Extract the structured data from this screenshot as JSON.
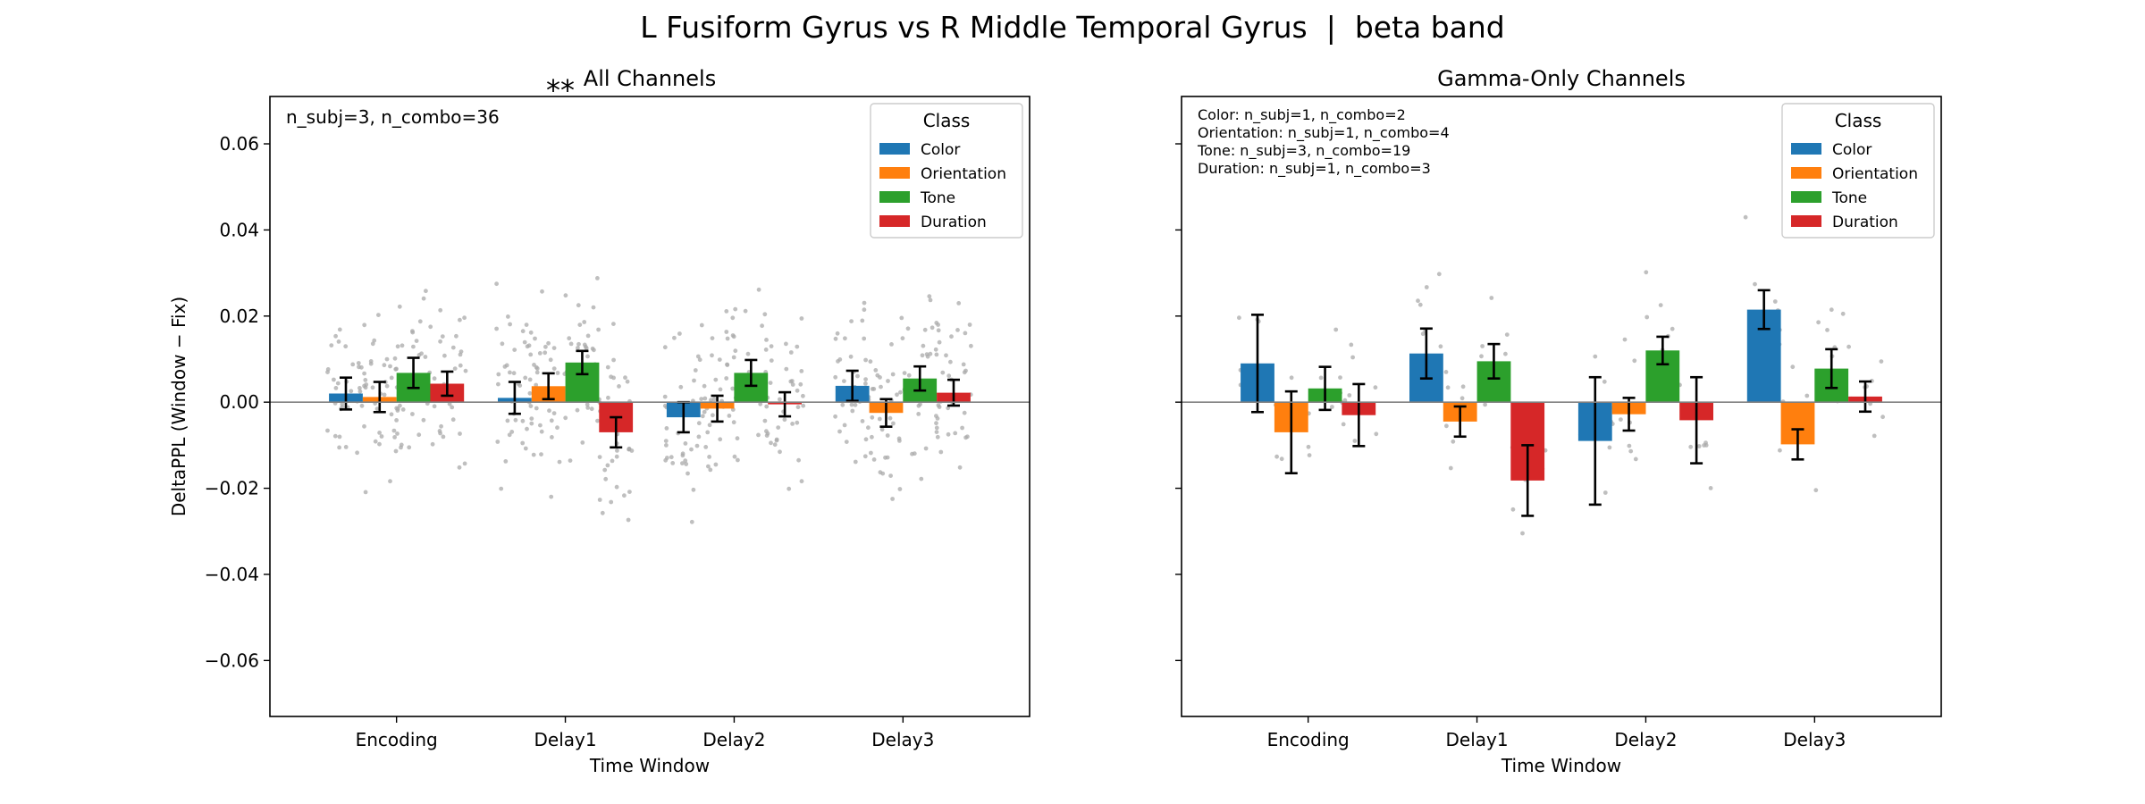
{
  "figure": {
    "suptitle": "L Fusiform Gyrus vs R Middle Temporal Gyrus  |  beta band"
  },
  "colors": {
    "Color": "#1f77b4",
    "Orientation": "#ff7f0e",
    "Tone": "#2ca02c",
    "Duration": "#d62728",
    "significance": "#ff0000",
    "scatter": "#aaaaaa"
  },
  "chart_data": [
    {
      "type": "bar",
      "title": "All Channels",
      "significance": "**",
      "xlabel": "Time Window",
      "ylabel": "DeltaPPL (Window − Fix)",
      "categories": [
        "Encoding",
        "Delay1",
        "Delay2",
        "Delay3"
      ],
      "ylim": [
        -0.073,
        0.071
      ],
      "yticks": [
        -0.06,
        -0.04,
        -0.02,
        0.0,
        0.02,
        0.04,
        0.06
      ],
      "ytick_labels": [
        "−0.06",
        "−0.04",
        "−0.02",
        "0.00",
        "0.02",
        "0.04",
        "0.06"
      ],
      "show_ytick_labels": true,
      "annotation": [
        "n_subj=3, n_combo=36"
      ],
      "legend": {
        "title": "Class",
        "placement": "top-right"
      },
      "series": [
        {
          "name": "Color",
          "values": [
            0.002,
            0.001,
            -0.0035,
            0.0038
          ],
          "err": [
            0.0037,
            0.0037,
            0.0035,
            0.0035
          ]
        },
        {
          "name": "Orientation",
          "values": [
            0.0012,
            0.0037,
            -0.0015,
            -0.0025
          ],
          "err": [
            0.0035,
            0.003,
            0.003,
            0.0032
          ]
        },
        {
          "name": "Tone",
          "values": [
            0.0068,
            0.0092,
            0.0068,
            0.0055
          ],
          "err": [
            0.0035,
            0.0027,
            0.003,
            0.0028
          ]
        },
        {
          "name": "Duration",
          "values": [
            0.0043,
            -0.007,
            -0.0005,
            0.0022
          ],
          "err": [
            0.0028,
            0.0035,
            0.0028,
            0.003
          ]
        }
      ],
      "scatter": {
        "points_per_bar": 36,
        "spread": 0.018
      }
    },
    {
      "type": "bar",
      "title": "Gamma-Only Channels",
      "xlabel": "Time Window",
      "ylabel": "",
      "categories": [
        "Encoding",
        "Delay1",
        "Delay2",
        "Delay3"
      ],
      "ylim": [
        -0.073,
        0.071
      ],
      "yticks": [
        -0.06,
        -0.04,
        -0.02,
        0.0,
        0.02,
        0.04,
        0.06
      ],
      "ytick_labels": [],
      "show_ytick_labels": false,
      "annotation": [
        "Color: n_subj=1, n_combo=2",
        "Orientation: n_subj=1, n_combo=4",
        "Tone: n_subj=3, n_combo=19",
        "Duration: n_subj=1, n_combo=3"
      ],
      "legend": {
        "title": "Class",
        "placement": "top-right"
      },
      "series": [
        {
          "name": "Color",
          "values": [
            0.009,
            0.0113,
            -0.009,
            0.0215
          ],
          "err": [
            0.0113,
            0.0058,
            0.0148,
            0.0045
          ]
        },
        {
          "name": "Orientation",
          "values": [
            -0.007,
            -0.0045,
            -0.0028,
            -0.0098
          ],
          "err": [
            0.0095,
            0.0035,
            0.0038,
            0.0035
          ]
        },
        {
          "name": "Tone",
          "values": [
            0.0032,
            0.0095,
            0.012,
            0.0078
          ],
          "err": [
            0.005,
            0.004,
            0.0032,
            0.0045
          ]
        },
        {
          "name": "Duration",
          "values": [
            -0.003,
            -0.0182,
            -0.0042,
            0.0013
          ],
          "err": [
            0.0072,
            0.0082,
            0.01,
            0.0035
          ]
        }
      ],
      "scatter": {
        "points_per_bar": 8,
        "spread": 0.016
      }
    }
  ]
}
